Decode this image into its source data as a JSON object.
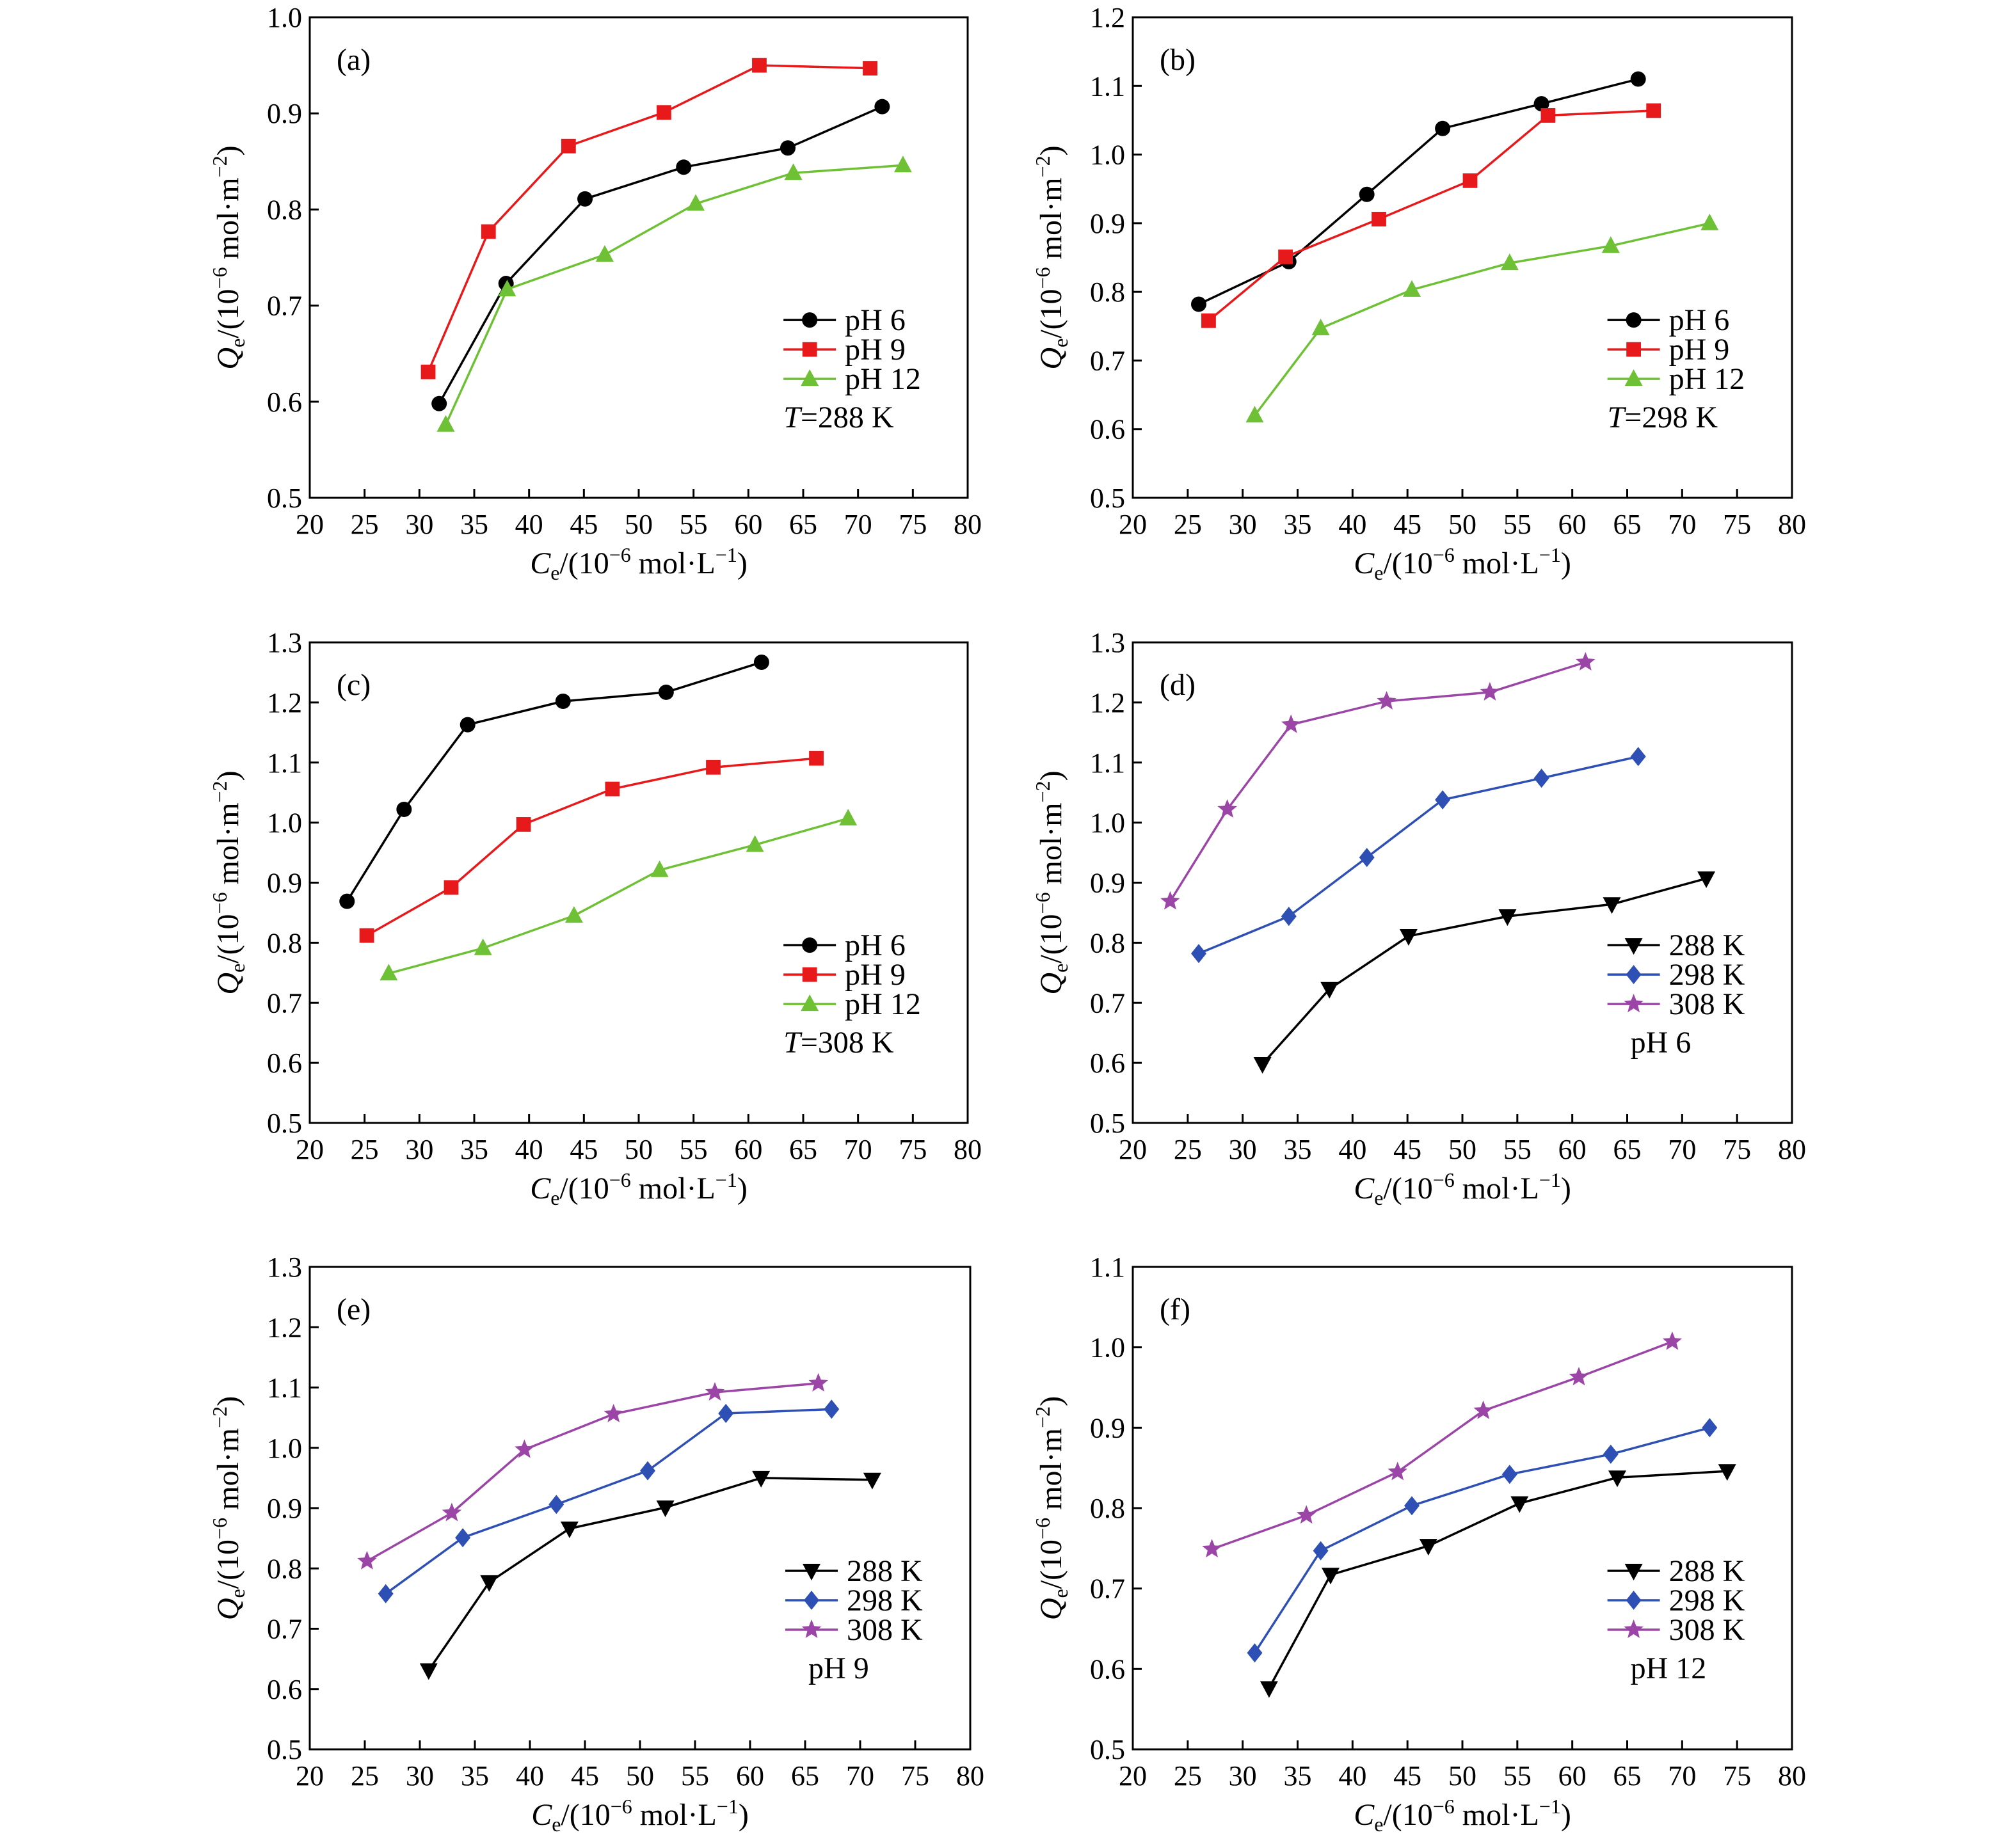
{
  "figure": {
    "x_axis_title": {
      "italic": "C",
      "sub": "e",
      "rest": "/(10",
      "sup": "−6",
      "unit": " mol·L",
      "sup2": "−1",
      "close": ")"
    },
    "y_axis_title": {
      "italic": "Q",
      "sub": "e",
      "rest": "/(10",
      "sup": "−6",
      "unit": " mol·m",
      "sup2": "−2",
      "close": ")"
    }
  },
  "styles": {
    "pH 6": {
      "color": "#000000",
      "marker": "circle"
    },
    "pH 9": {
      "color": "#e8191b",
      "marker": "square"
    },
    "pH 12": {
      "color": "#6ec035",
      "marker": "triangle-up"
    },
    "288 K": {
      "color": "#000000",
      "marker": "triangle-down"
    },
    "298 K": {
      "color": "#2e4fb4",
      "marker": "diamond"
    },
    "308 K": {
      "color": "#9b46a6",
      "marker": "star"
    }
  },
  "chart_data": [
    {
      "type": "line",
      "panel": "(a)",
      "condition_italic": "T",
      "condition": "=288 K",
      "xlim": [
        20,
        80
      ],
      "xticks": [
        "20",
        "25",
        "30",
        "35",
        "40",
        "45",
        "50",
        "55",
        "60",
        "65",
        "70",
        "75",
        "80"
      ],
      "ylim": [
        0.5,
        1.0
      ],
      "yticks": [
        "0.5",
        "0.6",
        "0.7",
        "0.8",
        "0.9",
        "1.0"
      ],
      "legend": "lower-right",
      "series": [
        {
          "name": "pH 6",
          "x": [
            31.8,
            37.9,
            45.1,
            54.1,
            63.6,
            72.2
          ],
          "y": [
            0.598,
            0.723,
            0.811,
            0.844,
            0.864,
            0.907
          ]
        },
        {
          "name": "pH 9",
          "x": [
            30.8,
            36.3,
            43.6,
            52.3,
            61.0,
            71.1
          ],
          "y": [
            0.631,
            0.777,
            0.866,
            0.901,
            0.95,
            0.947
          ]
        },
        {
          "name": "pH 12",
          "x": [
            32.4,
            38.0,
            46.9,
            55.2,
            64.1,
            74.1
          ],
          "y": [
            0.576,
            0.717,
            0.753,
            0.806,
            0.838,
            0.846
          ]
        }
      ]
    },
    {
      "type": "line",
      "panel": "(b)",
      "condition_italic": "T",
      "condition": "=298 K",
      "xlim": [
        20,
        80
      ],
      "xticks": [
        "20",
        "25",
        "30",
        "35",
        "40",
        "45",
        "50",
        "55",
        "60",
        "65",
        "70",
        "75",
        "80"
      ],
      "ylim": [
        0.5,
        1.2
      ],
      "yticks": [
        "0.5",
        "0.6",
        "0.7",
        "0.8",
        "0.9",
        "1.0",
        "1.1",
        "1.2"
      ],
      "legend": "lower-right",
      "series": [
        {
          "name": "pH 6",
          "x": [
            26.0,
            34.2,
            41.3,
            48.2,
            57.2,
            66.0
          ],
          "y": [
            0.782,
            0.844,
            0.942,
            1.038,
            1.074,
            1.11
          ]
        },
        {
          "name": "pH 9",
          "x": [
            26.9,
            33.9,
            42.4,
            50.7,
            57.8,
            67.4
          ],
          "y": [
            0.758,
            0.851,
            0.906,
            0.962,
            1.057,
            1.064
          ]
        },
        {
          "name": "pH 12",
          "x": [
            31.1,
            37.1,
            45.4,
            54.3,
            63.5,
            72.5
          ],
          "y": [
            0.62,
            0.747,
            0.803,
            0.842,
            0.867,
            0.9
          ]
        }
      ]
    },
    {
      "type": "line",
      "panel": "(c)",
      "condition_italic": "T",
      "condition": "=308 K",
      "xlim": [
        20,
        80
      ],
      "xticks": [
        "20",
        "25",
        "30",
        "35",
        "40",
        "45",
        "50",
        "55",
        "60",
        "65",
        "70",
        "75",
        "80"
      ],
      "ylim": [
        0.5,
        1.3
      ],
      "yticks": [
        "0.5",
        "0.6",
        "0.7",
        "0.8",
        "0.9",
        "1.0",
        "1.1",
        "1.2",
        "1.3"
      ],
      "legend": "lower-right",
      "series": [
        {
          "name": "pH 6",
          "x": [
            23.4,
            28.6,
            34.4,
            43.1,
            52.5,
            61.2
          ],
          "y": [
            0.869,
            1.022,
            1.163,
            1.202,
            1.217,
            1.267
          ]
        },
        {
          "name": "pH 9",
          "x": [
            25.2,
            32.9,
            39.5,
            47.6,
            56.8,
            66.2
          ],
          "y": [
            0.812,
            0.892,
            0.997,
            1.056,
            1.092,
            1.107
          ]
        },
        {
          "name": "pH 12",
          "x": [
            27.2,
            35.8,
            44.1,
            51.9,
            60.6,
            69.1
          ],
          "y": [
            0.749,
            0.791,
            0.845,
            0.921,
            0.963,
            1.007
          ]
        }
      ]
    },
    {
      "type": "line",
      "panel": "(d)",
      "condition_italic": "",
      "condition": "pH 6",
      "xlim": [
        20,
        80
      ],
      "xticks": [
        "20",
        "25",
        "30",
        "35",
        "40",
        "45",
        "50",
        "55",
        "60",
        "65",
        "70",
        "75",
        "80"
      ],
      "ylim": [
        0.5,
        1.3
      ],
      "yticks": [
        "0.5",
        "0.6",
        "0.7",
        "0.8",
        "0.9",
        "1.0",
        "1.1",
        "1.2",
        "1.3"
      ],
      "legend": "lower-right",
      "series": [
        {
          "name": "288 K",
          "x": [
            31.8,
            37.9,
            45.1,
            54.1,
            63.6,
            72.2
          ],
          "y": [
            0.598,
            0.723,
            0.811,
            0.844,
            0.864,
            0.907
          ]
        },
        {
          "name": "298 K",
          "x": [
            26.0,
            34.2,
            41.3,
            48.2,
            57.2,
            66.0
          ],
          "y": [
            0.782,
            0.844,
            0.942,
            1.038,
            1.074,
            1.11
          ]
        },
        {
          "name": "308 K",
          "x": [
            23.4,
            28.6,
            34.4,
            43.1,
            52.5,
            61.2
          ],
          "y": [
            0.869,
            1.022,
            1.163,
            1.202,
            1.217,
            1.267
          ]
        }
      ]
    },
    {
      "type": "line",
      "panel": "(e)",
      "condition_italic": "",
      "condition": "pH 9",
      "xlim": [
        20,
        80
      ],
      "xticks": [
        "20",
        "25",
        "30",
        "35",
        "40",
        "45",
        "50",
        "55",
        "60",
        "65",
        "70",
        "75",
        "80"
      ],
      "ylim": [
        0.5,
        1.3
      ],
      "yticks": [
        "0.5",
        "0.6",
        "0.7",
        "0.8",
        "0.9",
        "1.0",
        "1.1",
        "1.2",
        "1.3"
      ],
      "legend": "lower-right",
      "series": [
        {
          "name": "288 K",
          "x": [
            30.8,
            36.3,
            43.6,
            52.3,
            61.0,
            71.1
          ],
          "y": [
            0.631,
            0.777,
            0.866,
            0.901,
            0.95,
            0.947
          ]
        },
        {
          "name": "298 K",
          "x": [
            26.9,
            33.9,
            42.4,
            50.7,
            57.8,
            67.4
          ],
          "y": [
            0.758,
            0.851,
            0.906,
            0.962,
            1.057,
            1.064
          ]
        },
        {
          "name": "308 K",
          "x": [
            25.2,
            32.9,
            39.5,
            47.6,
            56.8,
            66.2
          ],
          "y": [
            0.812,
            0.892,
            0.997,
            1.056,
            1.092,
            1.107
          ]
        }
      ]
    },
    {
      "type": "line",
      "panel": "(f)",
      "condition_italic": "",
      "condition": "pH 12",
      "xlim": [
        20,
        80
      ],
      "xticks": [
        "20",
        "25",
        "30",
        "35",
        "40",
        "45",
        "50",
        "55",
        "60",
        "65",
        "70",
        "75",
        "80"
      ],
      "ylim": [
        0.5,
        1.1
      ],
      "yticks": [
        "0.5",
        "0.6",
        "0.7",
        "0.8",
        "0.9",
        "1.0",
        "1.1"
      ],
      "legend": "lower-right",
      "series": [
        {
          "name": "288 K",
          "x": [
            32.4,
            38.0,
            46.9,
            55.2,
            64.1,
            74.1
          ],
          "y": [
            0.576,
            0.717,
            0.753,
            0.806,
            0.838,
            0.846
          ]
        },
        {
          "name": "298 K",
          "x": [
            31.1,
            37.1,
            45.4,
            54.3,
            63.5,
            72.5
          ],
          "y": [
            0.62,
            0.747,
            0.803,
            0.842,
            0.867,
            0.9
          ]
        },
        {
          "name": "308 K",
          "x": [
            27.2,
            35.8,
            44.1,
            51.9,
            60.6,
            69.1
          ],
          "y": [
            0.749,
            0.791,
            0.845,
            0.921,
            0.963,
            1.007
          ]
        }
      ]
    }
  ]
}
